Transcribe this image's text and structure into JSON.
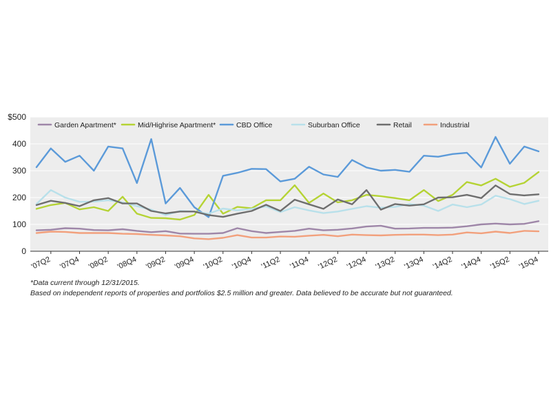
{
  "chart_data": {
    "type": "line",
    "title": "",
    "xlabel": "",
    "ylabel": "",
    "ylim": [
      0,
      500
    ],
    "yticks": [
      "$500",
      "400",
      "300",
      "200",
      "100",
      "0"
    ],
    "y_tick_values": [
      500,
      400,
      300,
      200,
      100,
      0
    ],
    "grid": true,
    "legend_position": "top-left, inside plot",
    "categories": [
      "07Q1",
      "07Q2",
      "07Q3",
      "07Q4",
      "08Q1",
      "08Q2",
      "08Q3",
      "08Q4",
      "09Q1",
      "09Q2",
      "09Q3",
      "09Q4",
      "10Q1",
      "10Q2",
      "10Q3",
      "10Q4",
      "11Q1",
      "11Q2",
      "11Q3",
      "11Q4",
      "12Q1",
      "12Q2",
      "12Q3",
      "12Q4",
      "13Q1",
      "13Q2",
      "13Q3",
      "13Q4",
      "14Q1",
      "14Q2",
      "14Q3",
      "14Q4",
      "15Q1",
      "15Q2",
      "15Q3",
      "15Q4"
    ],
    "tick_labels": [
      "'07Q2",
      "'07Q4",
      "'08Q2",
      "'08Q4",
      "'09Q2",
      "'09Q4",
      "'10Q2",
      "'10Q4",
      "'11Q2",
      "'11Q4",
      "'12Q2",
      "'12Q4",
      "'13Q2",
      "'13Q4",
      "'14Q2",
      "'14Q4",
      "'15Q2",
      "'15Q4"
    ],
    "series": [
      {
        "name": "Garden Apartment*",
        "color": "#9e86a8",
        "values": [
          78,
          80,
          86,
          84,
          79,
          78,
          82,
          76,
          71,
          75,
          66,
          65,
          65,
          68,
          86,
          75,
          68,
          72,
          76,
          84,
          78,
          80,
          85,
          92,
          95,
          84,
          85,
          87,
          87,
          88,
          93,
          100,
          103,
          100,
          102,
          112
        ]
      },
      {
        "name": "Mid/Highrise Apartment*",
        "color": "#b5d334",
        "values": [
          158,
          172,
          180,
          156,
          164,
          150,
          203,
          140,
          124,
          123,
          118,
          135,
          210,
          140,
          165,
          160,
          190,
          190,
          246,
          180,
          215,
          182,
          190,
          210,
          205,
          198,
          190,
          228,
          187,
          210,
          258,
          245,
          270,
          240,
          255,
          295
        ]
      },
      {
        "name": "CBD Office",
        "color": "#5b9ad9",
        "values": [
          313,
          383,
          333,
          356,
          300,
          390,
          383,
          254,
          418,
          178,
          236,
          164,
          127,
          281,
          292,
          307,
          306,
          260,
          270,
          315,
          286,
          277,
          340,
          312,
          300,
          303,
          296,
          356,
          352,
          362,
          367,
          312,
          426,
          326,
          390,
          372
        ]
      },
      {
        "name": "Suburban Office",
        "color": "#b8e0ea",
        "values": [
          176,
          228,
          200,
          184,
          185,
          190,
          182,
          168,
          155,
          135,
          150,
          148,
          140,
          159,
          152,
          158,
          167,
          146,
          164,
          152,
          142,
          148,
          158,
          168,
          162,
          165,
          176,
          170,
          150,
          174,
          164,
          174,
          207,
          194,
          176,
          188
        ]
      },
      {
        "name": "Retail",
        "color": "#6e6e6e",
        "values": [
          172,
          188,
          180,
          168,
          190,
          198,
          178,
          178,
          150,
          141,
          148,
          148,
          135,
          128,
          140,
          150,
          173,
          150,
          192,
          175,
          158,
          193,
          175,
          228,
          155,
          176,
          170,
          175,
          200,
          201,
          210,
          198,
          245,
          213,
          208,
          212
        ]
      },
      {
        "name": "Industrial",
        "color": "#f2a07c",
        "values": [
          68,
          73,
          72,
          68,
          68,
          68,
          65,
          64,
          61,
          59,
          56,
          48,
          45,
          50,
          60,
          51,
          51,
          55,
          54,
          58,
          61,
          56,
          62,
          60,
          59,
          61,
          62,
          62,
          60,
          62,
          70,
          67,
          73,
          68,
          76,
          74
        ]
      }
    ]
  },
  "footnotes": {
    "line1": "*Data current through 12/31/2015.",
    "line2": "Based on independent reports of properties and portfolios $2.5 million and greater. Data believed to be accurate but not guaranteed."
  }
}
